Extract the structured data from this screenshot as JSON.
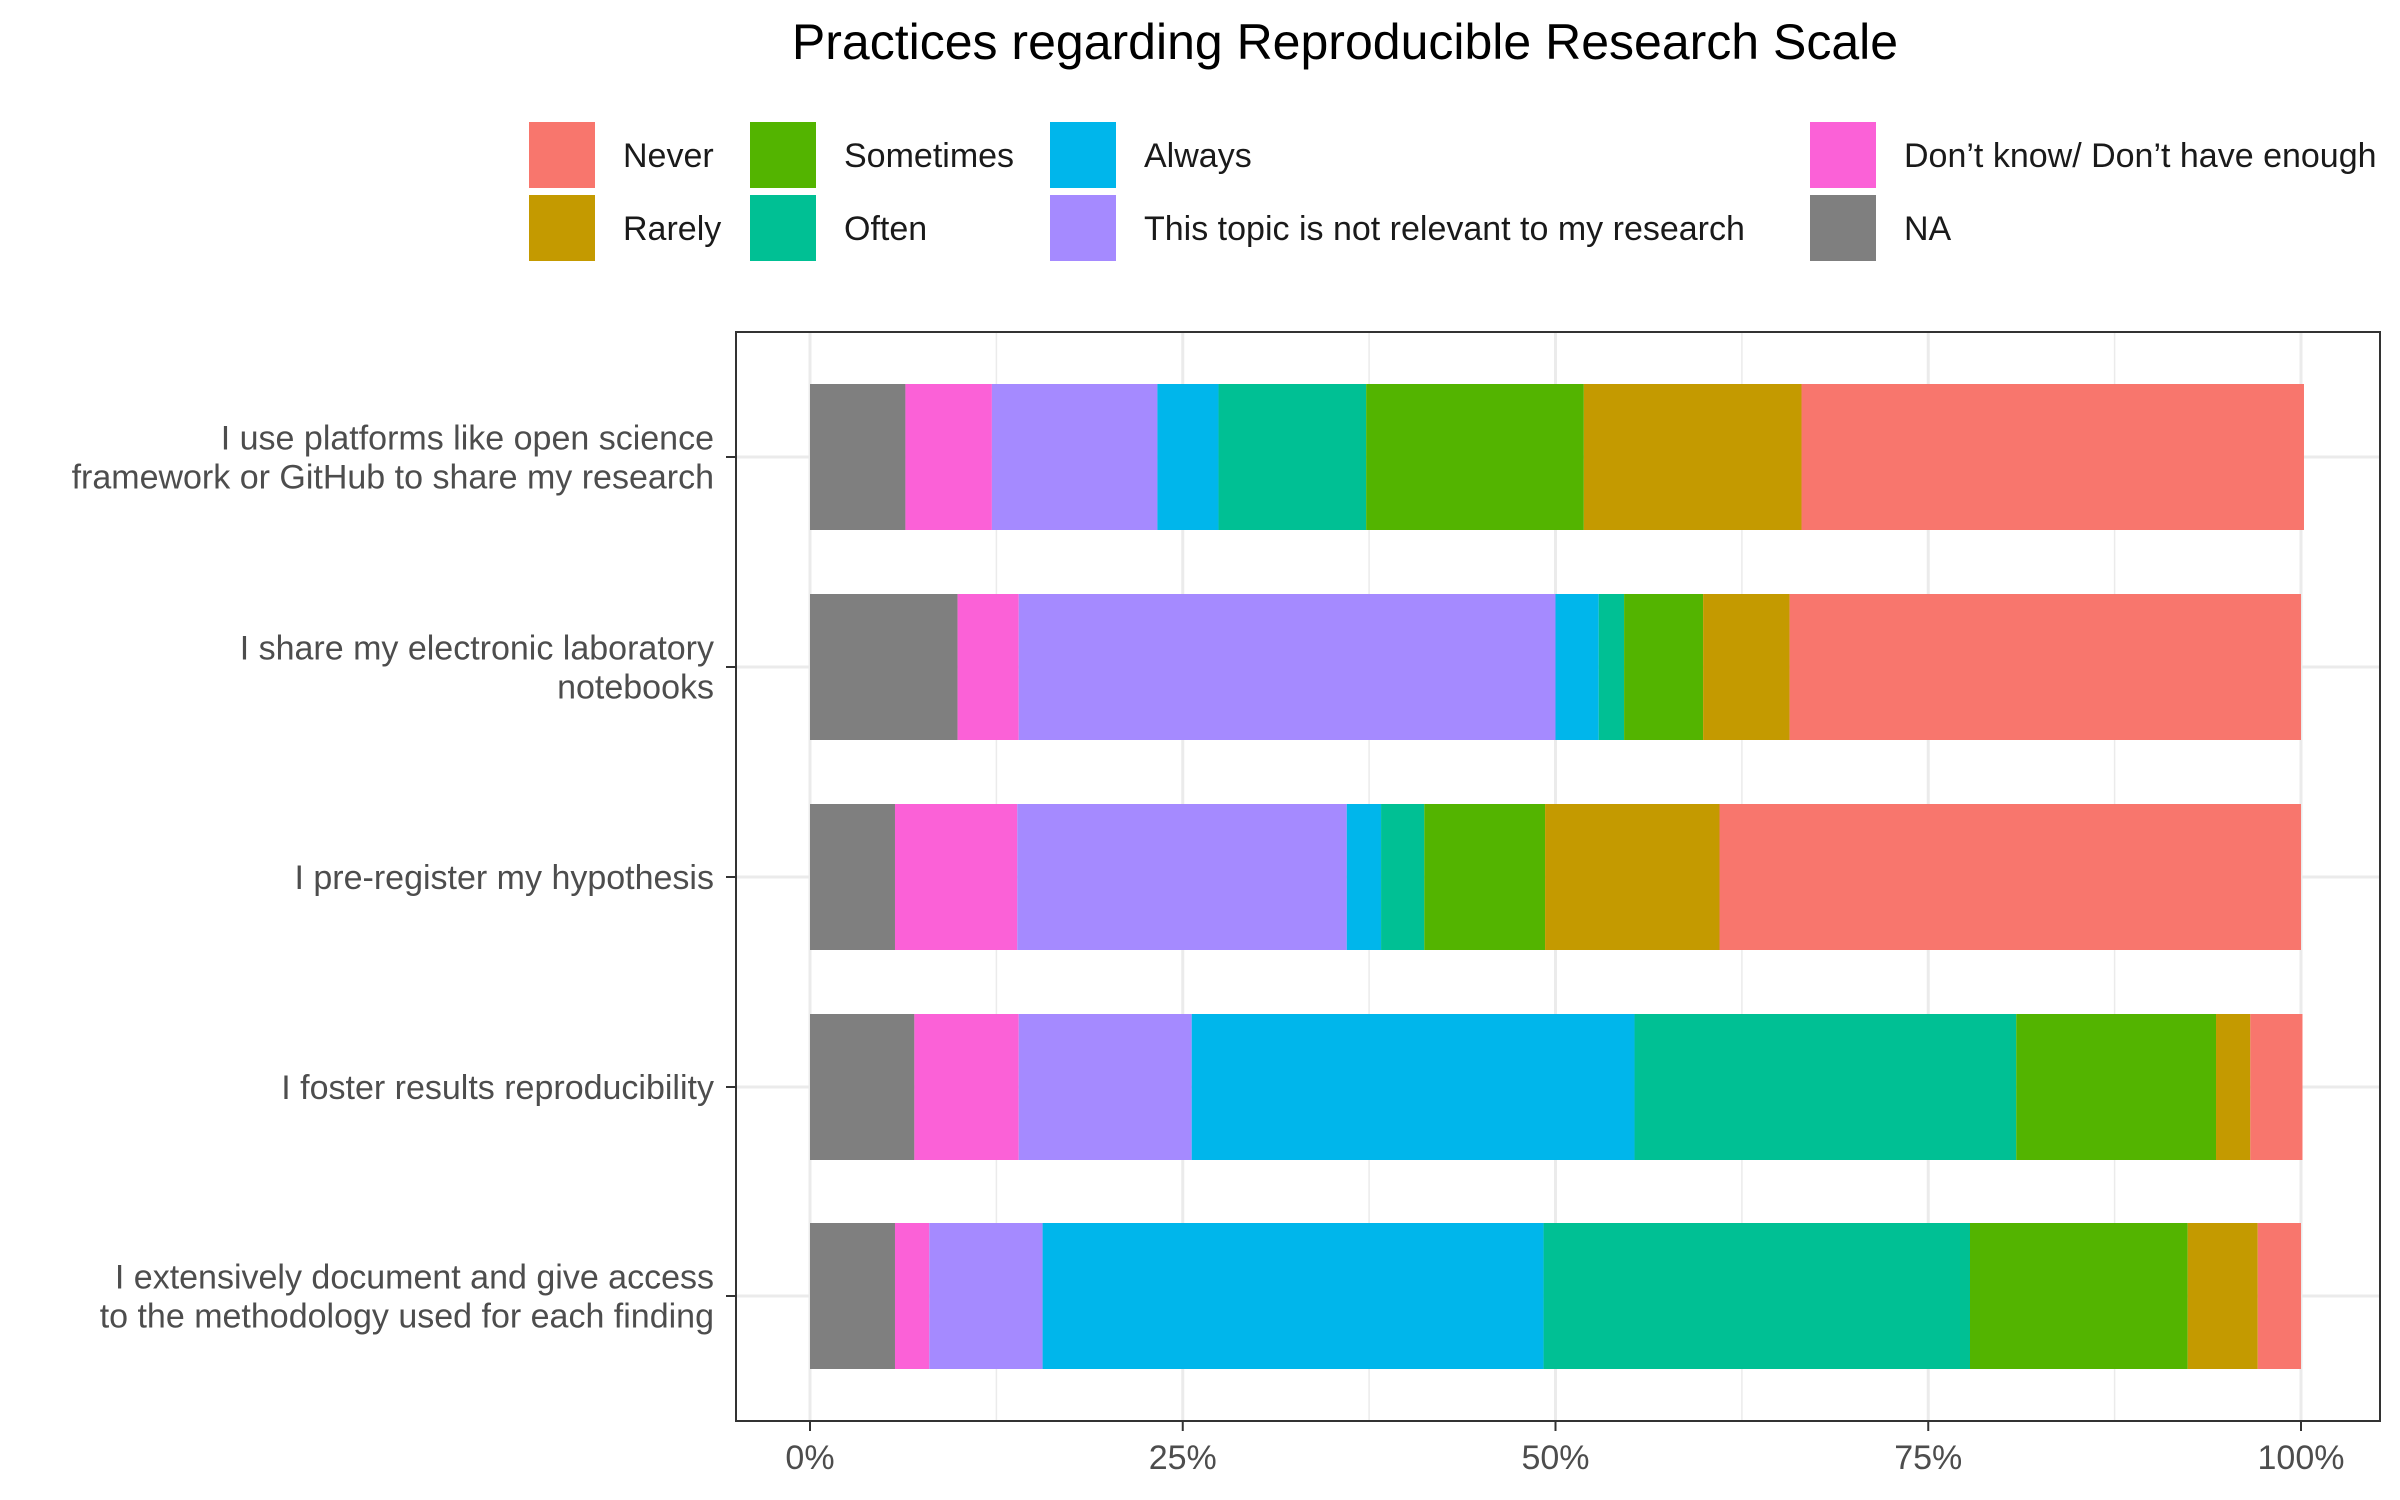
{
  "chart_data": {
    "type": "bar",
    "orientation": "horizontal",
    "stacked": true,
    "normalized": true,
    "title": "Practices regarding Reproducible Research Scale",
    "legend_position": "top",
    "grid": true,
    "xlim": [
      0,
      100
    ],
    "x_ticks": [
      "0%",
      "25%",
      "50%",
      "75%",
      "100%"
    ],
    "categories": [
      [
        "I use platforms like open science",
        "framework or GitHub to share my research"
      ],
      [
        "I share my electronic laboratory",
        "notebooks"
      ],
      [
        "I pre-register my hypothesis"
      ],
      [
        "I foster results reproducibility"
      ],
      [
        "I extensively document and give access",
        "to the methodology used for each finding"
      ]
    ],
    "stack_order": [
      "NA",
      "Don’t know/ Don’t have enough",
      "This topic is not relevant to my research",
      "Always",
      "Often",
      "Sometimes",
      "Rarely",
      "Never"
    ],
    "series": [
      {
        "name": "Never",
        "color": "#F8766D",
        "values": [
          33.7,
          34.3,
          39.0,
          3.5,
          2.9
        ]
      },
      {
        "name": "Rarely",
        "color": "#C49A00",
        "values": [
          14.6,
          5.8,
          11.7,
          2.3,
          4.7
        ]
      },
      {
        "name": "Sometimes",
        "color": "#53B400",
        "values": [
          14.6,
          5.3,
          8.1,
          13.4,
          14.6
        ]
      },
      {
        "name": "Often",
        "color": "#00C094",
        "values": [
          9.9,
          1.7,
          2.9,
          25.6,
          28.6
        ]
      },
      {
        "name": "Always",
        "color": "#00B6EB",
        "values": [
          4.1,
          2.9,
          2.3,
          29.7,
          33.6
        ]
      },
      {
        "name": "This topic is not relevant to my research",
        "color": "#A58AFF",
        "values": [
          11.1,
          36.0,
          22.1,
          11.6,
          7.6
        ]
      },
      {
        "name": "Don’t know/ Don’t have enough",
        "color": "#FB61D7",
        "values": [
          5.8,
          4.1,
          8.2,
          7.0,
          2.3
        ]
      },
      {
        "name": "NA",
        "color": "#7F7F7F",
        "values": [
          6.4,
          9.9,
          5.7,
          7.0,
          5.7
        ]
      }
    ]
  }
}
